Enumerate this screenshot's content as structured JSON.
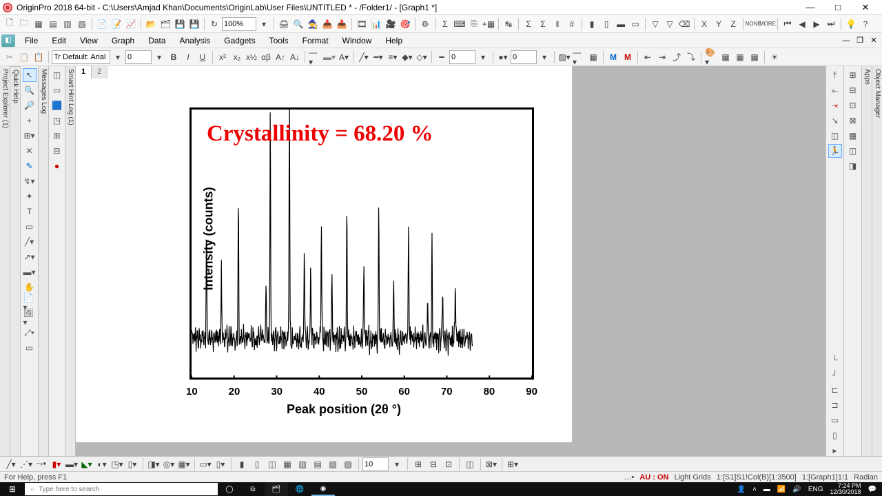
{
  "window": {
    "title": "OriginPro 2018 64-bit - C:\\Users\\Amjad Khan\\Documents\\OriginLab\\User Files\\UNTITLED * - /Folder1/ - [Graph1 *]",
    "min": "—",
    "max": "□",
    "close": "✕"
  },
  "menu": {
    "items": [
      "File",
      "Edit",
      "View",
      "Graph",
      "Data",
      "Analysis",
      "Gadgets",
      "Tools",
      "Format",
      "Window",
      "Help"
    ]
  },
  "toolbar": {
    "zoom": "100%",
    "font_label": "Tr Default: Arial",
    "font_size": "0",
    "num_a": "0",
    "num_b": "0",
    "bold": "B",
    "italic": "I",
    "underline": "U"
  },
  "side_tabs": {
    "left": [
      "Project Explorer (1)",
      "Quick Help",
      "Messages Log",
      "Smart Hint Log (1)"
    ],
    "right": [
      "Apps",
      "Object Manager"
    ]
  },
  "sheet_tabs": {
    "t1": "1",
    "t2": "2"
  },
  "graph": {
    "title": "Crystallinity = 68.20 %",
    "title_color": "#ee0000",
    "title_fontsize": 33,
    "ylabel": "Intensity (counts)",
    "xlabel": "Peak position (2θ °)",
    "xticks": [
      "10",
      "20",
      "30",
      "40",
      "50",
      "60",
      "70",
      "80",
      "90"
    ],
    "xlim": [
      10,
      90
    ],
    "ylim": [
      0,
      1000
    ],
    "border_width": 3,
    "line_color": "#000000",
    "peaks_2theta": [
      13.5,
      17.0,
      21.0,
      27.5,
      28.5,
      33.0,
      36.5,
      38.0,
      40.5,
      43.0,
      46.5,
      50.5,
      54.0,
      57.5,
      61.0,
      65.5,
      66.5,
      69.0,
      72.0
    ],
    "peak_heights": [
      420,
      260,
      580,
      200,
      930,
      1000,
      400,
      320,
      480,
      260,
      540,
      300,
      560,
      240,
      450,
      170,
      400,
      210,
      240
    ],
    "baseline": 130,
    "noise_amp": 50
  },
  "bottom_combo": "10",
  "status": {
    "left": "For Help, press F1",
    "au": "AU : ON",
    "grids": "Light Grids",
    "col": "1:[S1]S1!Col(B)[1:3500]",
    "graph": "1:[Graph1]1!1",
    "unit": "Radian"
  },
  "taskbar": {
    "search_placeholder": "Type here to search",
    "lang": "ENG",
    "time": "7:24 PM",
    "date": "12/30/2018"
  }
}
